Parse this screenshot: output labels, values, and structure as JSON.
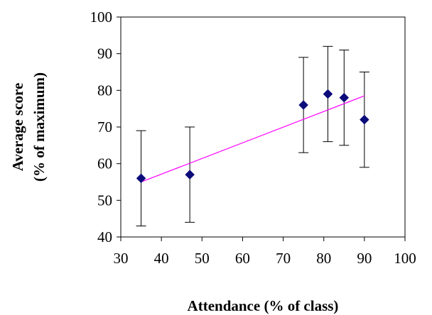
{
  "chart_data": {
    "type": "scatter",
    "title": "",
    "xlabel": "Attendance (% of class)",
    "ylabel_line1": "Average score",
    "ylabel_line2": "(% of maximum)",
    "xlim": [
      30,
      100
    ],
    "ylim": [
      40,
      100
    ],
    "x_ticks": [
      30,
      40,
      50,
      60,
      70,
      80,
      90,
      100
    ],
    "y_ticks": [
      40,
      50,
      60,
      70,
      80,
      90,
      100
    ],
    "grid": false,
    "legend": "none",
    "series": [
      {
        "marker": "diamond",
        "color": "#0b0b7a",
        "points": [
          {
            "x": 35,
            "y": 56,
            "err_low": 43,
            "err_high": 69
          },
          {
            "x": 47,
            "y": 57,
            "err_low": 44,
            "err_high": 70
          },
          {
            "x": 75,
            "y": 76,
            "err_low": 63,
            "err_high": 89
          },
          {
            "x": 81,
            "y": 79,
            "err_low": 66,
            "err_high": 92
          },
          {
            "x": 85,
            "y": 78,
            "err_low": 65,
            "err_high": 91
          },
          {
            "x": 90,
            "y": 72,
            "err_low": 59,
            "err_high": 85
          }
        ]
      }
    ],
    "trendline": {
      "type": "linear",
      "color": "#ff00ff",
      "x_start": 35,
      "y_start": 55,
      "x_end": 90,
      "y_end": 78.5
    }
  }
}
